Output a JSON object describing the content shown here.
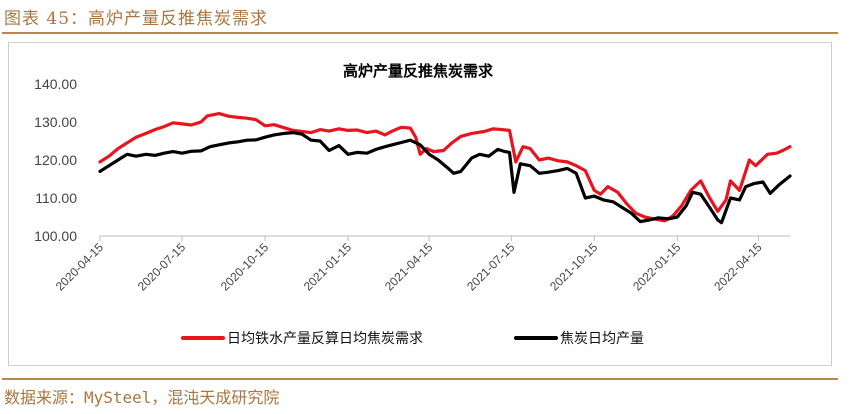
{
  "caption": "图表 45：高炉产量反推焦炭需求",
  "source": "数据来源：MySteel，混沌天成研究院",
  "colors": {
    "accent": "#b8864e",
    "series_red": "#e8141e",
    "series_black": "#000000"
  },
  "chart_data": {
    "type": "line",
    "title": "高炉产量反推焦炭需求",
    "ylim": [
      100,
      140
    ],
    "yticks": [
      "100.00",
      "110.00",
      "120.00",
      "130.00",
      "140.00"
    ],
    "xlim": [
      "2020-04-15",
      "2022-05-20"
    ],
    "xticks": [
      "2020-04-15",
      "2020-07-15",
      "2020-10-15",
      "2021-01-15",
      "2021-04-15",
      "2021-07-15",
      "2021-10-15",
      "2022-01-15",
      "2022-04-15"
    ],
    "legend_position": "bottom",
    "grid": false,
    "series": [
      {
        "name": "日均铁水产量反算日均焦炭需求",
        "color": "#e8141e",
        "points": [
          [
            "2020-04-15",
            119.5
          ],
          [
            "2020-04-25",
            121.0
          ],
          [
            "2020-05-05",
            123.0
          ],
          [
            "2020-05-15",
            124.5
          ],
          [
            "2020-05-25",
            126.0
          ],
          [
            "2020-06-05",
            127.0
          ],
          [
            "2020-06-15",
            128.0
          ],
          [
            "2020-06-25",
            128.8
          ],
          [
            "2020-07-05",
            129.8
          ],
          [
            "2020-07-15",
            129.5
          ],
          [
            "2020-07-25",
            129.2
          ],
          [
            "2020-08-05",
            130.0
          ],
          [
            "2020-08-12",
            131.6
          ],
          [
            "2020-08-25",
            132.2
          ],
          [
            "2020-09-05",
            131.5
          ],
          [
            "2020-09-15",
            131.2
          ],
          [
            "2020-09-25",
            131.0
          ],
          [
            "2020-10-05",
            130.6
          ],
          [
            "2020-10-15",
            129.0
          ],
          [
            "2020-10-25",
            129.3
          ],
          [
            "2020-11-05",
            128.5
          ],
          [
            "2020-11-15",
            127.8
          ],
          [
            "2020-11-25",
            127.5
          ],
          [
            "2020-12-05",
            127.2
          ],
          [
            "2020-12-15",
            128.0
          ],
          [
            "2020-12-25",
            127.6
          ],
          [
            "2021-01-05",
            128.2
          ],
          [
            "2021-01-15",
            127.8
          ],
          [
            "2021-01-25",
            127.9
          ],
          [
            "2021-02-05",
            127.2
          ],
          [
            "2021-02-15",
            127.6
          ],
          [
            "2021-02-25",
            126.6
          ],
          [
            "2021-03-05",
            127.6
          ],
          [
            "2021-03-15",
            128.6
          ],
          [
            "2021-03-25",
            128.4
          ],
          [
            "2021-03-31",
            126.0
          ],
          [
            "2021-04-05",
            121.5
          ],
          [
            "2021-04-12",
            123.0
          ],
          [
            "2021-04-20",
            122.2
          ],
          [
            "2021-05-01",
            122.5
          ],
          [
            "2021-05-10",
            124.5
          ],
          [
            "2021-05-20",
            126.2
          ],
          [
            "2021-06-01",
            127.0
          ],
          [
            "2021-06-15",
            127.5
          ],
          [
            "2021-06-25",
            128.2
          ],
          [
            "2021-07-05",
            128.0
          ],
          [
            "2021-07-13",
            127.8
          ],
          [
            "2021-07-20",
            119.5
          ],
          [
            "2021-07-28",
            123.5
          ],
          [
            "2021-08-05",
            123.0
          ],
          [
            "2021-08-15",
            120.0
          ],
          [
            "2021-08-25",
            120.5
          ],
          [
            "2021-09-05",
            119.8
          ],
          [
            "2021-09-15",
            119.5
          ],
          [
            "2021-09-25",
            118.5
          ],
          [
            "2021-10-05",
            117.2
          ],
          [
            "2021-10-15",
            112.0
          ],
          [
            "2021-10-22",
            111.0
          ],
          [
            "2021-10-30",
            113.0
          ],
          [
            "2021-11-10",
            111.5
          ],
          [
            "2021-11-20",
            108.5
          ],
          [
            "2021-11-30",
            106.0
          ],
          [
            "2021-12-10",
            105.0
          ],
          [
            "2021-12-20",
            104.5
          ],
          [
            "2022-01-01",
            104.0
          ],
          [
            "2022-01-10",
            105.2
          ],
          [
            "2022-01-20",
            108.0
          ],
          [
            "2022-01-30",
            112.0
          ],
          [
            "2022-02-10",
            114.5
          ],
          [
            "2022-02-20",
            110.0
          ],
          [
            "2022-03-01",
            106.5
          ],
          [
            "2022-03-10",
            109.5
          ],
          [
            "2022-03-15",
            114.5
          ],
          [
            "2022-03-25",
            112.0
          ],
          [
            "2022-04-05",
            120.0
          ],
          [
            "2022-04-12",
            118.5
          ],
          [
            "2022-04-25",
            121.5
          ],
          [
            "2022-05-05",
            121.8
          ],
          [
            "2022-05-12",
            122.5
          ],
          [
            "2022-05-20",
            123.5
          ]
        ]
      },
      {
        "name": "焦炭日均产量",
        "color": "#000000",
        "points": [
          [
            "2020-04-15",
            117.0
          ],
          [
            "2020-04-25",
            118.5
          ],
          [
            "2020-05-05",
            120.0
          ],
          [
            "2020-05-15",
            121.5
          ],
          [
            "2020-05-25",
            121.0
          ],
          [
            "2020-06-05",
            121.5
          ],
          [
            "2020-06-15",
            121.2
          ],
          [
            "2020-06-25",
            121.8
          ],
          [
            "2020-07-05",
            122.2
          ],
          [
            "2020-07-15",
            121.8
          ],
          [
            "2020-07-25",
            122.3
          ],
          [
            "2020-08-05",
            122.4
          ],
          [
            "2020-08-15",
            123.5
          ],
          [
            "2020-08-25",
            124.0
          ],
          [
            "2020-09-05",
            124.5
          ],
          [
            "2020-09-15",
            124.8
          ],
          [
            "2020-09-25",
            125.2
          ],
          [
            "2020-10-05",
            125.3
          ],
          [
            "2020-10-15",
            126.0
          ],
          [
            "2020-10-25",
            126.6
          ],
          [
            "2020-11-05",
            127.0
          ],
          [
            "2020-11-15",
            127.2
          ],
          [
            "2020-11-25",
            126.8
          ],
          [
            "2020-12-05",
            125.2
          ],
          [
            "2020-12-15",
            125.0
          ],
          [
            "2020-12-25",
            122.5
          ],
          [
            "2021-01-05",
            123.8
          ],
          [
            "2021-01-15",
            121.5
          ],
          [
            "2021-01-25",
            122.0
          ],
          [
            "2021-02-05",
            121.8
          ],
          [
            "2021-02-15",
            122.8
          ],
          [
            "2021-02-25",
            123.5
          ],
          [
            "2021-03-05",
            124.0
          ],
          [
            "2021-03-15",
            124.6
          ],
          [
            "2021-03-25",
            125.2
          ],
          [
            "2021-04-05",
            124.0
          ],
          [
            "2021-04-15",
            121.5
          ],
          [
            "2021-04-25",
            120.0
          ],
          [
            "2021-05-05",
            118.0
          ],
          [
            "2021-05-12",
            116.5
          ],
          [
            "2021-05-20",
            117.0
          ],
          [
            "2021-06-01",
            120.5
          ],
          [
            "2021-06-10",
            121.5
          ],
          [
            "2021-06-20",
            121.0
          ],
          [
            "2021-06-30",
            122.8
          ],
          [
            "2021-07-08",
            122.2
          ],
          [
            "2021-07-13",
            122.0
          ],
          [
            "2021-07-18",
            111.5
          ],
          [
            "2021-07-25",
            119.0
          ],
          [
            "2021-08-05",
            118.5
          ],
          [
            "2021-08-15",
            116.5
          ],
          [
            "2021-08-25",
            116.8
          ],
          [
            "2021-09-05",
            117.2
          ],
          [
            "2021-09-15",
            117.8
          ],
          [
            "2021-09-25",
            116.5
          ],
          [
            "2021-10-05",
            110.0
          ],
          [
            "2021-10-15",
            110.5
          ],
          [
            "2021-10-25",
            109.5
          ],
          [
            "2021-11-05",
            109.0
          ],
          [
            "2021-11-15",
            107.5
          ],
          [
            "2021-11-25",
            106.0
          ],
          [
            "2021-12-05",
            103.8
          ],
          [
            "2021-12-15",
            104.2
          ],
          [
            "2021-12-25",
            104.8
          ],
          [
            "2022-01-05",
            104.5
          ],
          [
            "2022-01-15",
            105.0
          ],
          [
            "2022-01-25",
            108.0
          ],
          [
            "2022-02-01",
            111.5
          ],
          [
            "2022-02-10",
            111.0
          ],
          [
            "2022-02-20",
            107.5
          ],
          [
            "2022-03-01",
            104.2
          ],
          [
            "2022-03-05",
            103.5
          ],
          [
            "2022-03-15",
            110.0
          ],
          [
            "2022-03-25",
            109.5
          ],
          [
            "2022-04-01",
            113.0
          ],
          [
            "2022-04-10",
            113.8
          ],
          [
            "2022-04-20",
            114.2
          ],
          [
            "2022-04-28",
            111.2
          ],
          [
            "2022-05-08",
            113.5
          ],
          [
            "2022-05-20",
            115.8
          ]
        ]
      }
    ]
  }
}
